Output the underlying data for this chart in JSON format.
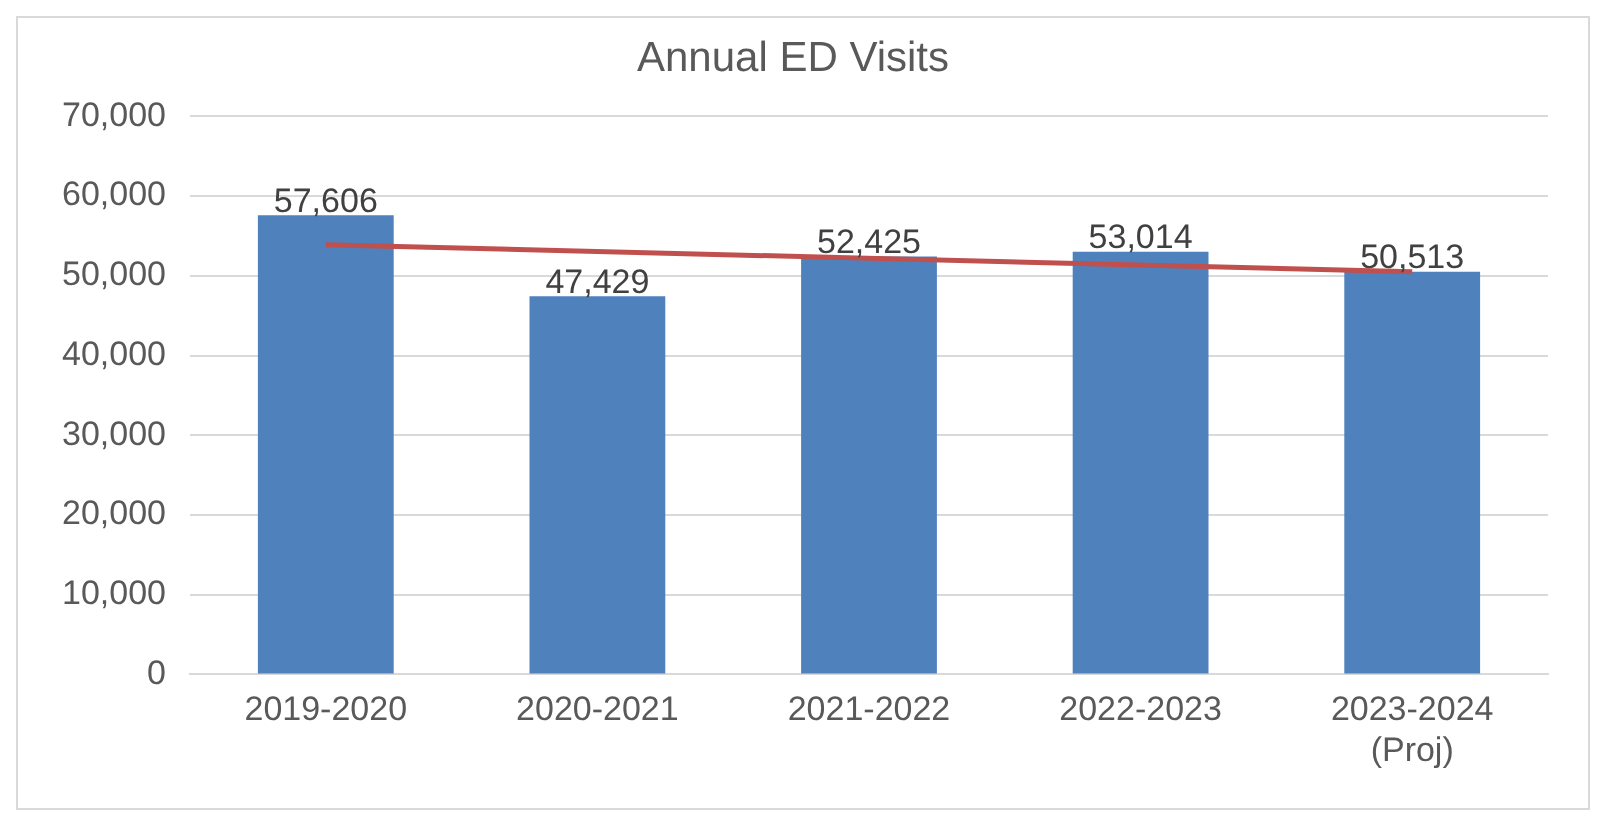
{
  "chart_data": {
    "type": "bar",
    "title": "Annual ED Visits",
    "categories": [
      "2019-2020",
      "2020-2021",
      "2021-2022",
      "2022-2023",
      "2023-2024 (Proj)"
    ],
    "series": [
      {
        "color": "#4f81bd",
        "values": [
          57606,
          47429,
          52425,
          53014,
          50513
        ],
        "value_labels": [
          "57,606",
          "47,429",
          "52,425",
          "53,014",
          "50,513"
        ]
      },
      {
        "type": "line",
        "color": "#c0504d",
        "x": [
          "2019-2020",
          "2023-2024 (Proj)"
        ],
        "values": [
          53900,
          50500
        ]
      }
    ],
    "ylim": [
      0,
      70000
    ],
    "yticks": [
      0,
      {
        "value": 10000,
        "label": "10,000"
      },
      {
        "value": 20000,
        "label": "20,000"
      },
      {
        "value": 30000,
        "label": "30,000"
      },
      {
        "value": 40000,
        "label": "40,000"
      },
      {
        "value": 50000,
        "label": "50,000"
      },
      {
        "value": 60000,
        "label": "60,000"
      },
      {
        "value": 70000,
        "label": "70,000"
      }
    ],
    "grid": "y",
    "legend": false
  }
}
